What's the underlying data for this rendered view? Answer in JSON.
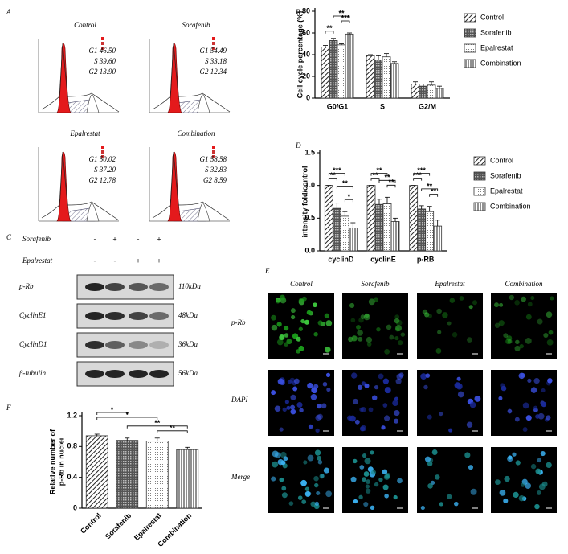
{
  "panel_labels": [
    "A",
    "B",
    "C",
    "D",
    "E",
    "F"
  ],
  "panel_a": {
    "plots": [
      {
        "title": "Control",
        "stats": [
          "G1 46.50",
          "S 39.60",
          "G2 13.90"
        ]
      },
      {
        "title": "Sorafenib",
        "stats": [
          "G1 54.49",
          "S 33.18",
          "G2 12.34"
        ]
      },
      {
        "title": "Epalrestat",
        "stats": [
          "G1 50.02",
          "S 37.20",
          "G2 12.78"
        ]
      },
      {
        "title": "Combination",
        "stats": [
          "G1 58.58",
          "S 32.83",
          "G2 8.59"
        ]
      }
    ]
  },
  "panel_c": {
    "treatments": [
      {
        "name": "Sorafenib",
        "signs": [
          "-",
          "+",
          "-",
          "+"
        ]
      },
      {
        "name": "Epalrestat",
        "signs": [
          "-",
          "-",
          "+",
          "+"
        ]
      }
    ],
    "rows": [
      {
        "protein": "p-Rb",
        "size": "110kDa"
      },
      {
        "protein": "CyclinE1",
        "size": "48kDa"
      },
      {
        "protein": "CyclinD1",
        "size": "36kDa"
      },
      {
        "protein": "β-tubulin",
        "size": "56kDa"
      }
    ]
  },
  "panel_e": {
    "columns": [
      "Control",
      "Sorafenib",
      "Epalrestat",
      "Combination"
    ],
    "rows": [
      "p-Rb",
      "DAPI",
      "Merge"
    ]
  },
  "chart_data": [
    {
      "type": "bar",
      "y_label": "Cell cycle percentage (%)",
      "categories": [
        "G0/G1",
        "S",
        "G2/M"
      ],
      "series": [
        {
          "name": "Control",
          "pattern": "diagonal",
          "color": "#333333",
          "values": [
            47,
            39,
            13
          ],
          "errors": [
            1.5,
            1,
            2
          ]
        },
        {
          "name": "Sorafenib",
          "pattern": "crosshatch",
          "color": "#333333",
          "values": [
            53,
            35,
            11
          ],
          "errors": [
            2,
            4,
            2
          ]
        },
        {
          "name": "Epalrestat",
          "pattern": "dots",
          "color": "#333333",
          "values": [
            49,
            38,
            12
          ],
          "errors": [
            1,
            3,
            3
          ]
        },
        {
          "name": "Combination",
          "pattern": "vertical",
          "color": "#333333",
          "values": [
            59,
            32,
            9
          ],
          "errors": [
            1,
            1.5,
            2
          ]
        }
      ],
      "ylim": [
        0,
        80
      ],
      "yticks": [
        0,
        20,
        40,
        60,
        80
      ],
      "legend": "right",
      "annotations": [
        "**",
        "**",
        "***"
      ]
    },
    {
      "type": "bar",
      "y_label": "intensity fold/control",
      "categories": [
        "cyclinD",
        "cyclinE",
        "p-RB"
      ],
      "series": [
        {
          "name": "Control",
          "pattern": "diagonal",
          "color": "#333333",
          "values": [
            1.0,
            1.0,
            1.0
          ],
          "errors": [
            0,
            0,
            0
          ]
        },
        {
          "name": "Sorafenib",
          "pattern": "crosshatch",
          "color": "#333333",
          "values": [
            0.65,
            0.71,
            0.64
          ],
          "errors": [
            0.08,
            0.08,
            0.05
          ]
        },
        {
          "name": "Epalrestat",
          "pattern": "dots",
          "color": "#333333",
          "values": [
            0.53,
            0.72,
            0.6
          ],
          "errors": [
            0.07,
            0.1,
            0.08
          ]
        },
        {
          "name": "Combination",
          "pattern": "vertical",
          "color": "#333333",
          "values": [
            0.35,
            0.45,
            0.38
          ],
          "errors": [
            0.08,
            0.05,
            0.09
          ]
        }
      ],
      "ylim": [
        0,
        1.5
      ],
      "yticks": [
        {
          "value": 0,
          "label": "0.0"
        },
        0.5,
        {
          "value": 1,
          "label": "1.0"
        },
        1.5
      ],
      "legend": "right",
      "annotations": [
        "***",
        "**",
        "**",
        "*",
        "**",
        "**",
        "**",
        "**",
        "***",
        "***",
        "**",
        "**"
      ]
    },
    {
      "type": "bar",
      "y_label": [
        "Relative number of",
        "p-Rb in nuclei"
      ],
      "categories": [
        "Control",
        "Sorafenib",
        "Epalrestat",
        "Combination"
      ],
      "values": [
        0.94,
        0.88,
        0.87,
        0.76
      ],
      "errors": [
        0.02,
        0.03,
        0.04,
        0.03
      ],
      "patterns": [
        "diagonal",
        "crosshatch",
        "dots",
        "vertical"
      ],
      "color": "#333333",
      "ylim": [
        0,
        1.2
      ],
      "yticks": [
        0,
        0.4,
        0.8,
        1.2
      ],
      "annotations": [
        "**",
        "**",
        "*",
        "*"
      ]
    }
  ]
}
